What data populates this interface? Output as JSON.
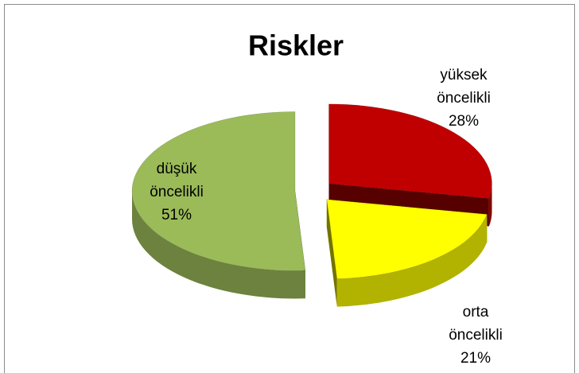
{
  "chart_data": {
    "type": "pie",
    "title": "Riskler",
    "categories": [
      "yüksek öncelikli",
      "orta öncelikli",
      "düşük öncelikli"
    ],
    "values": [
      28,
      21,
      51
    ],
    "value_labels": [
      "28%",
      "21%",
      "51%"
    ],
    "colors": [
      "#c00000",
      "#ffff00",
      "#9bbb59"
    ]
  }
}
